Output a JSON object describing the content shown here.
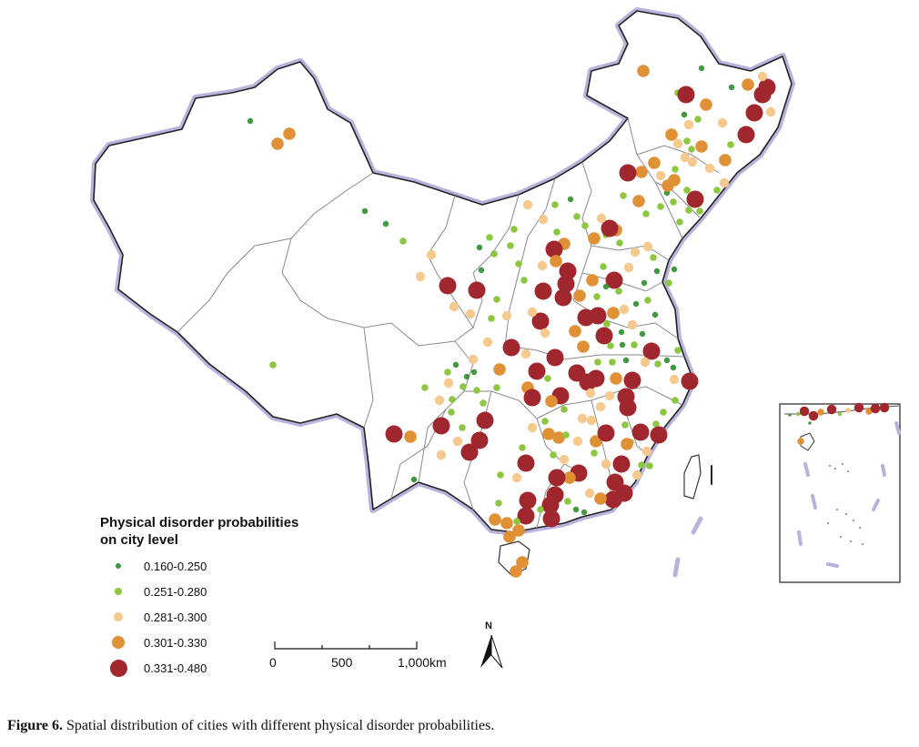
{
  "legend": {
    "title_line1": "Physical disorder probabilities",
    "title_line2": "on city level",
    "classes": [
      {
        "label": "0.160-0.250",
        "color": "#3f9a3f",
        "size": "smallest"
      },
      {
        "label": "0.251-0.280",
        "color": "#8dc63f",
        "size": "small"
      },
      {
        "label": "0.281-0.300",
        "color": "#f6c98f",
        "size": "medium"
      },
      {
        "label": "0.301-0.330",
        "color": "#e09035",
        "size": "large"
      },
      {
        "label": "0.331-0.480",
        "color": "#a0272d",
        "size": "largest"
      }
    ]
  },
  "scale_bar": {
    "labels": [
      "0",
      "500",
      "1,000km"
    ]
  },
  "north_arrow": {
    "label": "N"
  },
  "caption": {
    "label": "Figure 6.",
    "text": "Spatial distribution of cities with different physical disorder probabilities."
  },
  "colors": {
    "border_glow": "#b8b3dc",
    "border_line": "#222222",
    "province_line": "#8a8a8a"
  },
  "inset": {
    "name": "south-china-sea-inset"
  }
}
